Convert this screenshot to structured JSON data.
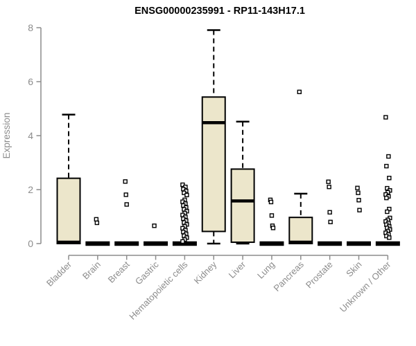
{
  "chart_data": {
    "type": "boxplot",
    "title": "ENSG00000235991 - RP11-143H17.1",
    "ylabel": "Expression",
    "xlabel": "",
    "ylim": [
      0,
      8
    ],
    "yticks": [
      0,
      2,
      4,
      6,
      8
    ],
    "grid": false,
    "legend": null,
    "box_fill_color": "#ece6cb",
    "box_line_color": "#000000",
    "axis_color": "#8c8c8c",
    "title_color": "#000000",
    "outlier_marker": "open-square",
    "categories": [
      {
        "label": "Bladder",
        "box": {
          "lo": 0,
          "q1": 0,
          "med": 0.05,
          "q3": 2.42,
          "hi": 4.78
        },
        "outliers": []
      },
      {
        "label": "Brain",
        "box": {
          "lo": 0,
          "q1": 0,
          "med": 0.02,
          "q3": 0.05,
          "hi": 0.05
        },
        "outliers": [
          0.9,
          0.77
        ]
      },
      {
        "label": "Breast",
        "box": {
          "lo": 0,
          "q1": 0,
          "med": 0.02,
          "q3": 0.05,
          "hi": 0.05
        },
        "outliers": [
          2.3,
          1.81,
          1.45
        ]
      },
      {
        "label": "Gastric",
        "box": {
          "lo": 0,
          "q1": 0,
          "med": 0.02,
          "q3": 0.05,
          "hi": 0.05
        },
        "outliers": [
          0.66
        ]
      },
      {
        "label": "Hematopoietic cells",
        "box": {
          "lo": 0,
          "q1": 0,
          "med": 0.02,
          "q3": 0.05,
          "hi": 0.05
        },
        "outliers": [
          2.18,
          2.1,
          2.02,
          1.95,
          1.88,
          1.8,
          1.62,
          1.55,
          1.48,
          1.41,
          1.34,
          1.27,
          1.2,
          1.13,
          1.06,
          0.99,
          0.92,
          0.85,
          0.78,
          0.71,
          0.64,
          0.57,
          0.5,
          0.43,
          0.36,
          0.29,
          0.22,
          0.15,
          0.08
        ]
      },
      {
        "label": "Kidney",
        "box": {
          "lo": 0,
          "q1": 0.45,
          "med": 4.48,
          "q3": 5.43,
          "hi": 7.91
        },
        "outliers": []
      },
      {
        "label": "Liver",
        "box": {
          "lo": 0,
          "q1": 0.05,
          "med": 1.58,
          "q3": 2.76,
          "hi": 4.52
        },
        "outliers": []
      },
      {
        "label": "Lung",
        "box": {
          "lo": 0,
          "q1": 0,
          "med": 0.02,
          "q3": 0.05,
          "hi": 0.05
        },
        "outliers": [
          1.62,
          1.54,
          1.04,
          0.66,
          0.58
        ]
      },
      {
        "label": "Pancreas",
        "box": {
          "lo": 0,
          "q1": 0,
          "med": 0.05,
          "q3": 0.97,
          "hi": 1.85
        },
        "outliers": [
          5.62
        ]
      },
      {
        "label": "Prostate",
        "box": {
          "lo": 0,
          "q1": 0,
          "med": 0.02,
          "q3": 0.05,
          "hi": 0.05
        },
        "outliers": [
          2.29,
          2.1,
          1.16,
          0.8
        ]
      },
      {
        "label": "Skin",
        "box": {
          "lo": 0,
          "q1": 0,
          "med": 0.02,
          "q3": 0.05,
          "hi": 0.05
        },
        "outliers": [
          2.06,
          1.88,
          1.61,
          1.24
        ]
      },
      {
        "label": "Unknown / Other",
        "box": {
          "lo": 0,
          "q1": 0,
          "med": 0.02,
          "q3": 0.05,
          "hi": 0.05
        },
        "outliers": [
          4.68,
          3.23,
          2.87,
          2.43,
          2.05,
          1.97,
          1.9,
          1.82,
          1.75,
          1.69,
          1.28,
          1.18,
          0.95,
          0.88,
          0.82,
          0.76,
          0.7,
          0.64,
          0.58,
          0.52,
          0.46,
          0.4,
          0.34,
          0.28,
          0.22
        ]
      }
    ]
  }
}
